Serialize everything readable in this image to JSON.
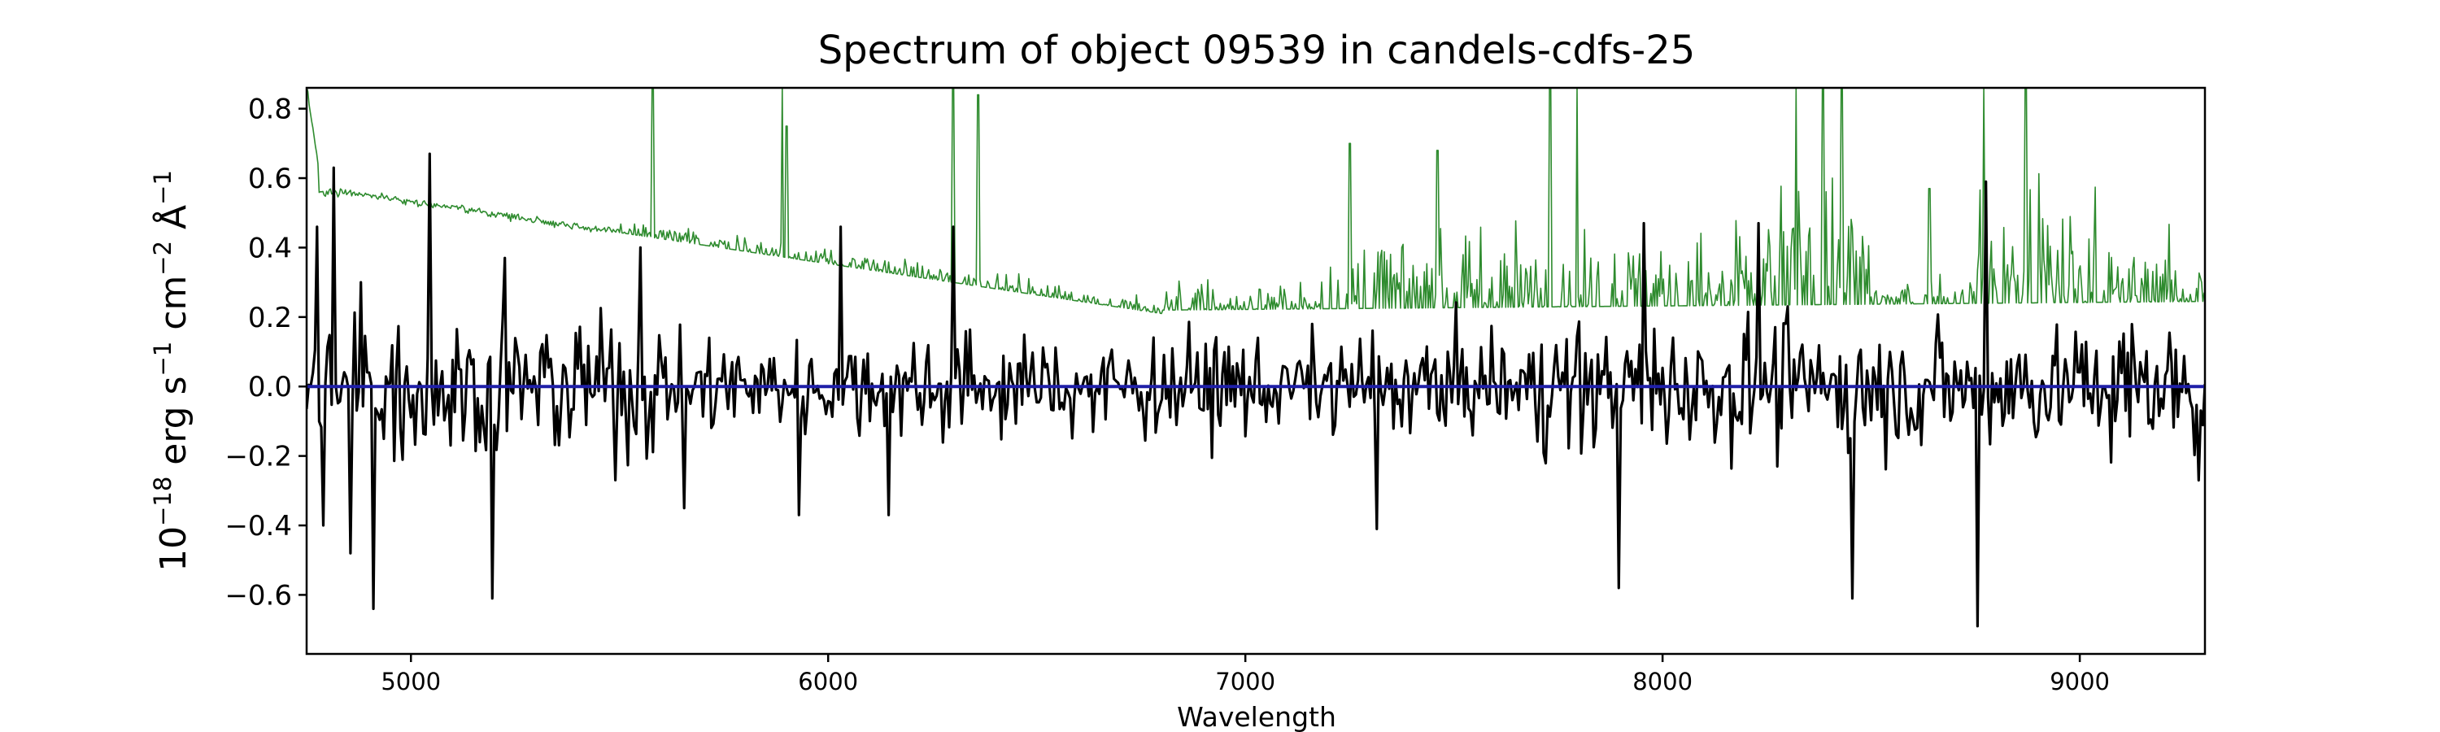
{
  "chart_data": {
    "type": "line",
    "title": "Spectrum of object 09539 in candels-cdfs-25",
    "xlabel": "Wavelength",
    "ylabel_base": "10",
    "ylabel_exp": "−18",
    "ylabel_erg": " erg s",
    "ylabel_s_exp": "−1",
    "ylabel_cm": " cm",
    "ylabel_cm_exp": "−2",
    "ylabel_ang": " Å",
    "ylabel_ang_exp": "−1",
    "xlim": [
      4750,
      9300
    ],
    "ylim": [
      -0.77,
      0.86
    ],
    "x_ticks": [
      5000,
      6000,
      7000,
      8000,
      9000
    ],
    "x_tick_labels": [
      "5000",
      "6000",
      "7000",
      "8000",
      "9000"
    ],
    "y_ticks": [
      -0.6,
      -0.4,
      -0.2,
      0.0,
      0.2,
      0.4,
      0.6,
      0.8
    ],
    "y_tick_labels": [
      "−0.6",
      "−0.4",
      "−0.2",
      "0.0",
      "0.2",
      "0.4",
      "0.6",
      "0.8"
    ],
    "grid": false,
    "series_colors": {
      "flux": "#000000",
      "noise": "#2e8b2e",
      "model": "#1f1fa8"
    },
    "flux_spikes": [
      {
        "x": 4775,
        "y": 0.46
      },
      {
        "x": 4790,
        "y": -0.4
      },
      {
        "x": 4815,
        "y": 0.63
      },
      {
        "x": 4855,
        "y": -0.48
      },
      {
        "x": 4880,
        "y": 0.3
      },
      {
        "x": 4910,
        "y": -0.64
      },
      {
        "x": 5045,
        "y": 0.67
      },
      {
        "x": 5195,
        "y": -0.61
      },
      {
        "x": 5225,
        "y": 0.37
      },
      {
        "x": 5550,
        "y": 0.4
      },
      {
        "x": 5655,
        "y": -0.35
      },
      {
        "x": 5930,
        "y": -0.37
      },
      {
        "x": 6030,
        "y": 0.46
      },
      {
        "x": 6145,
        "y": -0.37
      },
      {
        "x": 6300,
        "y": 0.46
      },
      {
        "x": 7315,
        "y": -0.41
      },
      {
        "x": 7895,
        "y": -0.58
      },
      {
        "x": 7955,
        "y": 0.47
      },
      {
        "x": 8230,
        "y": 0.47
      },
      {
        "x": 8455,
        "y": -0.61
      },
      {
        "x": 8755,
        "y": -0.69
      },
      {
        "x": 8775,
        "y": 0.59
      },
      {
        "x": 9285,
        "y": -0.27
      }
    ],
    "noise_spikes": [
      {
        "x": 5580,
        "y": 0.86
      },
      {
        "x": 5890,
        "y": 0.86
      },
      {
        "x": 5900,
        "y": 0.75
      },
      {
        "x": 6300,
        "y": 0.86
      },
      {
        "x": 6360,
        "y": 0.84
      },
      {
        "x": 7250,
        "y": 0.7
      },
      {
        "x": 7460,
        "y": 0.68
      },
      {
        "x": 7730,
        "y": 0.86
      },
      {
        "x": 7795,
        "y": 0.86
      },
      {
        "x": 8320,
        "y": 0.86
      },
      {
        "x": 8385,
        "y": 0.86
      },
      {
        "x": 8430,
        "y": 0.86
      },
      {
        "x": 8640,
        "y": 0.57
      },
      {
        "x": 8770,
        "y": 0.86
      },
      {
        "x": 8870,
        "y": 0.86
      }
    ]
  }
}
